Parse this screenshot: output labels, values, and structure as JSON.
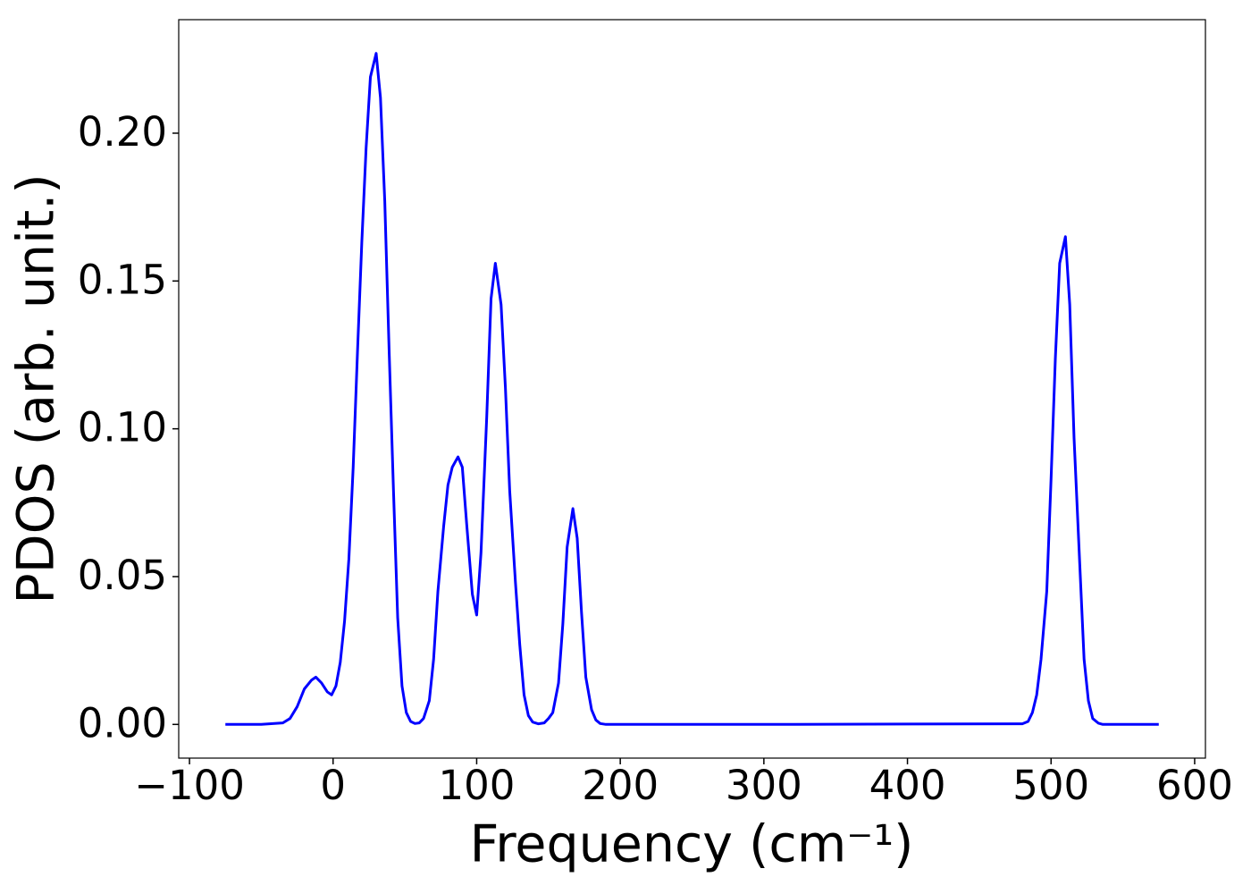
{
  "chart_data": {
    "type": "line",
    "xlabel": "Frequency (cm⁻¹)",
    "ylabel": "PDOS (arb. unit.)",
    "xlim": [
      -107.5,
      607.5
    ],
    "ylim": [
      -0.0114,
      0.2384
    ],
    "xticks": [
      {
        "value": -100,
        "label": "−100"
      },
      0,
      100,
      200,
      300,
      400,
      500,
      600
    ],
    "yticks": [
      {
        "value": 0,
        "label": "0.00"
      },
      {
        "value": 0.05,
        "label": "0.05"
      },
      {
        "value": 0.1,
        "label": "0.10"
      },
      {
        "value": 0.15,
        "label": "0.15"
      },
      {
        "value": 0.2,
        "label": "0.20"
      }
    ],
    "grid": false,
    "x": [
      -75,
      -50,
      -35,
      -30,
      -25,
      -20,
      -15,
      -12,
      -8,
      -4,
      -1,
      2,
      5,
      8,
      11,
      14,
      17,
      20,
      23,
      26,
      30,
      33,
      36,
      39,
      42,
      45,
      48,
      51,
      54,
      57,
      60,
      63,
      67,
      70,
      73,
      77,
      80,
      83,
      87,
      90,
      93,
      97,
      100,
      103,
      107,
      110,
      113,
      117,
      120,
      123,
      127,
      130,
      133,
      136,
      139,
      143,
      147,
      150,
      153,
      157,
      160,
      163,
      167,
      170,
      173,
      176,
      180,
      183,
      186,
      190,
      300,
      480,
      484,
      487,
      490,
      493,
      497,
      500,
      503,
      506,
      510,
      513,
      516,
      520,
      523,
      526,
      529,
      533,
      536,
      575
    ],
    "series": [
      {
        "color": "#0000ff",
        "values": [
          0,
          0,
          0.0005,
          0.002,
          0.006,
          0.012,
          0.015,
          0.016,
          0.014,
          0.011,
          0.01,
          0.013,
          0.021,
          0.035,
          0.056,
          0.087,
          0.126,
          0.163,
          0.195,
          0.219,
          0.227,
          0.212,
          0.177,
          0.127,
          0.08,
          0.036,
          0.013,
          0.004,
          0.001,
          0.0003,
          0.0005,
          0.002,
          0.008,
          0.022,
          0.045,
          0.067,
          0.081,
          0.087,
          0.0905,
          0.087,
          0.068,
          0.044,
          0.037,
          0.058,
          0.104,
          0.144,
          0.156,
          0.142,
          0.114,
          0.079,
          0.048,
          0.027,
          0.01,
          0.003,
          0.0008,
          0.0002,
          0.0005,
          0.002,
          0.004,
          0.014,
          0.034,
          0.06,
          0.073,
          0.063,
          0.038,
          0.016,
          0.005,
          0.0015,
          0.0003,
          0,
          0,
          0.0002,
          0.001,
          0.004,
          0.01,
          0.022,
          0.045,
          0.083,
          0.124,
          0.156,
          0.165,
          0.142,
          0.097,
          0.054,
          0.022,
          0.008,
          0.002,
          0.0004,
          0,
          0
        ]
      }
    ]
  }
}
